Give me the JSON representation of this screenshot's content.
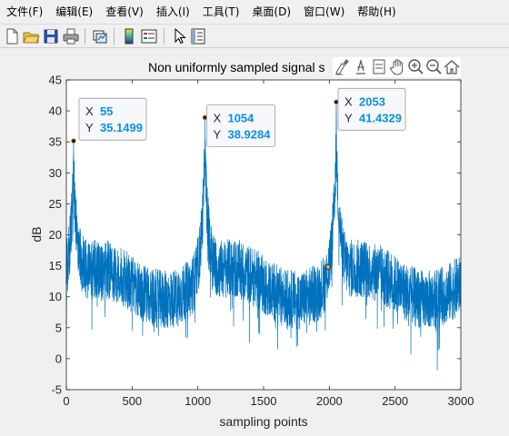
{
  "menu": {
    "items": [
      "文件(F)",
      "编辑(E)",
      "查看(V)",
      "插入(I)",
      "工具(T)",
      "桌面(D)",
      "窗口(W)",
      "帮助(H)"
    ]
  },
  "toolbar": {
    "buttons": [
      "new-file-icon",
      "open-folder-icon",
      "save-icon",
      "print-icon",
      "link-plot-icon",
      "colorbar-icon",
      "legend-icon",
      "pointer-icon",
      "property-inspector-icon"
    ]
  },
  "axes_toolbar": {
    "buttons": [
      "brush-icon",
      "data-tips-icon",
      "export-icon",
      "pan-icon",
      "zoom-in-icon",
      "zoom-out-icon",
      "home-icon"
    ]
  },
  "colors": {
    "line": "#0072bd",
    "tip_value": "#0b8fe8"
  },
  "chart_data": {
    "type": "line",
    "title": "Non uniformly sampled signal s",
    "xlabel": "sampling points",
    "ylabel": "dB",
    "xlim": [
      0,
      3000
    ],
    "ylim": [
      -5,
      45
    ],
    "xticks": [
      "0",
      "500",
      "1000",
      "1500",
      "2000",
      "2500",
      "3000"
    ],
    "yticks": [
      "-5",
      "0",
      "5",
      "10",
      "15",
      "20",
      "25",
      "30",
      "35",
      "40",
      "45"
    ],
    "series": [
      {
        "name": "signal",
        "description": "noisy spectrum with three peaks",
        "peaks": [
          {
            "x": 55,
            "y": 35.1499
          },
          {
            "x": 1054,
            "y": 38.9284
          },
          {
            "x": 2053,
            "y": 41.4329
          }
        ],
        "baseline_db": 12,
        "noise_spread_db": 6,
        "n_points": 3000
      }
    ],
    "datatips": [
      {
        "x_label": "X",
        "x": "55",
        "y_label": "Y",
        "y": "35.1499"
      },
      {
        "x_label": "X",
        "x": "1054",
        "y_label": "Y",
        "y": "38.9284"
      },
      {
        "x_label": "X",
        "x": "2053",
        "y_label": "Y",
        "y": "41.4329"
      }
    ],
    "extra_marker": {
      "x": 1990,
      "y": 14.8
    }
  }
}
